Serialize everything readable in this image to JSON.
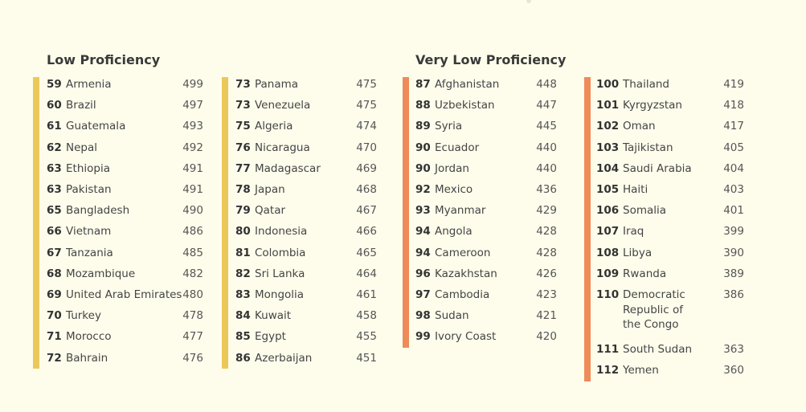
{
  "colors": {
    "background": "#fefdec",
    "low_bar": "#ebc85a",
    "very_low_bar": "#ef8a5a"
  },
  "sections": {
    "low": {
      "title": "Low Proficiency"
    },
    "very_low": {
      "title": "Very Low Proficiency"
    }
  },
  "columns": [
    {
      "section": "low",
      "rows": [
        {
          "rank": "59",
          "country": "Armenia",
          "score": "499"
        },
        {
          "rank": "60",
          "country": "Brazil",
          "score": "497"
        },
        {
          "rank": "61",
          "country": "Guatemala",
          "score": "493"
        },
        {
          "rank": "62",
          "country": "Nepal",
          "score": "492"
        },
        {
          "rank": "63",
          "country": "Ethiopia",
          "score": "491"
        },
        {
          "rank": "63",
          "country": "Pakistan",
          "score": "491"
        },
        {
          "rank": "65",
          "country": "Bangladesh",
          "score": "490"
        },
        {
          "rank": "66",
          "country": "Vietnam",
          "score": "486"
        },
        {
          "rank": "67",
          "country": "Tanzania",
          "score": "485"
        },
        {
          "rank": "68",
          "country": "Mozambique",
          "score": "482"
        },
        {
          "rank": "69",
          "country": "United Arab Emirates",
          "score": "480"
        },
        {
          "rank": "70",
          "country": "Turkey",
          "score": "478"
        },
        {
          "rank": "71",
          "country": "Morocco",
          "score": "477"
        },
        {
          "rank": "72",
          "country": "Bahrain",
          "score": "476"
        }
      ]
    },
    {
      "section": "low",
      "rows": [
        {
          "rank": "73",
          "country": "Panama",
          "score": "475"
        },
        {
          "rank": "73",
          "country": "Venezuela",
          "score": "475"
        },
        {
          "rank": "75",
          "country": "Algeria",
          "score": "474"
        },
        {
          "rank": "76",
          "country": "Nicaragua",
          "score": "470"
        },
        {
          "rank": "77",
          "country": "Madagascar",
          "score": "469"
        },
        {
          "rank": "78",
          "country": "Japan",
          "score": "468"
        },
        {
          "rank": "79",
          "country": "Qatar",
          "score": "467"
        },
        {
          "rank": "80",
          "country": "Indonesia",
          "score": "466"
        },
        {
          "rank": "81",
          "country": "Colombia",
          "score": "465"
        },
        {
          "rank": "82",
          "country": "Sri Lanka",
          "score": "464"
        },
        {
          "rank": "83",
          "country": "Mongolia",
          "score": "461"
        },
        {
          "rank": "84",
          "country": "Kuwait",
          "score": "458"
        },
        {
          "rank": "85",
          "country": "Egypt",
          "score": "455"
        },
        {
          "rank": "86",
          "country": "Azerbaijan",
          "score": "451"
        }
      ]
    },
    {
      "section": "very_low",
      "rows": [
        {
          "rank": "87",
          "country": "Afghanistan",
          "score": "448"
        },
        {
          "rank": "88",
          "country": "Uzbekistan",
          "score": "447"
        },
        {
          "rank": "89",
          "country": "Syria",
          "score": "445"
        },
        {
          "rank": "90",
          "country": "Ecuador",
          "score": "440"
        },
        {
          "rank": "90",
          "country": "Jordan",
          "score": "440"
        },
        {
          "rank": "92",
          "country": "Mexico",
          "score": "436"
        },
        {
          "rank": "93",
          "country": "Myanmar",
          "score": "429"
        },
        {
          "rank": "94",
          "country": "Angola",
          "score": "428"
        },
        {
          "rank": "94",
          "country": "Cameroon",
          "score": "428"
        },
        {
          "rank": "96",
          "country": "Kazakhstan",
          "score": "426"
        },
        {
          "rank": "97",
          "country": "Cambodia",
          "score": "423"
        },
        {
          "rank": "98",
          "country": "Sudan",
          "score": "421"
        },
        {
          "rank": "99",
          "country": "Ivory Coast",
          "score": "420"
        }
      ]
    },
    {
      "section": "very_low",
      "rows": [
        {
          "rank": "100",
          "country": "Thailand",
          "score": "419"
        },
        {
          "rank": "101",
          "country": "Kyrgyzstan",
          "score": "418"
        },
        {
          "rank": "102",
          "country": "Oman",
          "score": "417"
        },
        {
          "rank": "103",
          "country": "Tajikistan",
          "score": "405"
        },
        {
          "rank": "104",
          "country": "Saudi Arabia",
          "score": "404"
        },
        {
          "rank": "105",
          "country": "Haiti",
          "score": "403"
        },
        {
          "rank": "106",
          "country": "Somalia",
          "score": "401"
        },
        {
          "rank": "107",
          "country": "Iraq",
          "score": "399"
        },
        {
          "rank": "108",
          "country": "Libya",
          "score": "390"
        },
        {
          "rank": "109",
          "country": "Rwanda",
          "score": "389"
        },
        {
          "rank": "110",
          "country": "Democratic Republic of the Congo",
          "score": "386",
          "country_lines": [
            "Democratic",
            "Republic of",
            "the Congo"
          ]
        },
        {
          "rank": "111",
          "country": "South Sudan",
          "score": "363"
        },
        {
          "rank": "112",
          "country": "Yemen",
          "score": "360"
        }
      ]
    }
  ]
}
